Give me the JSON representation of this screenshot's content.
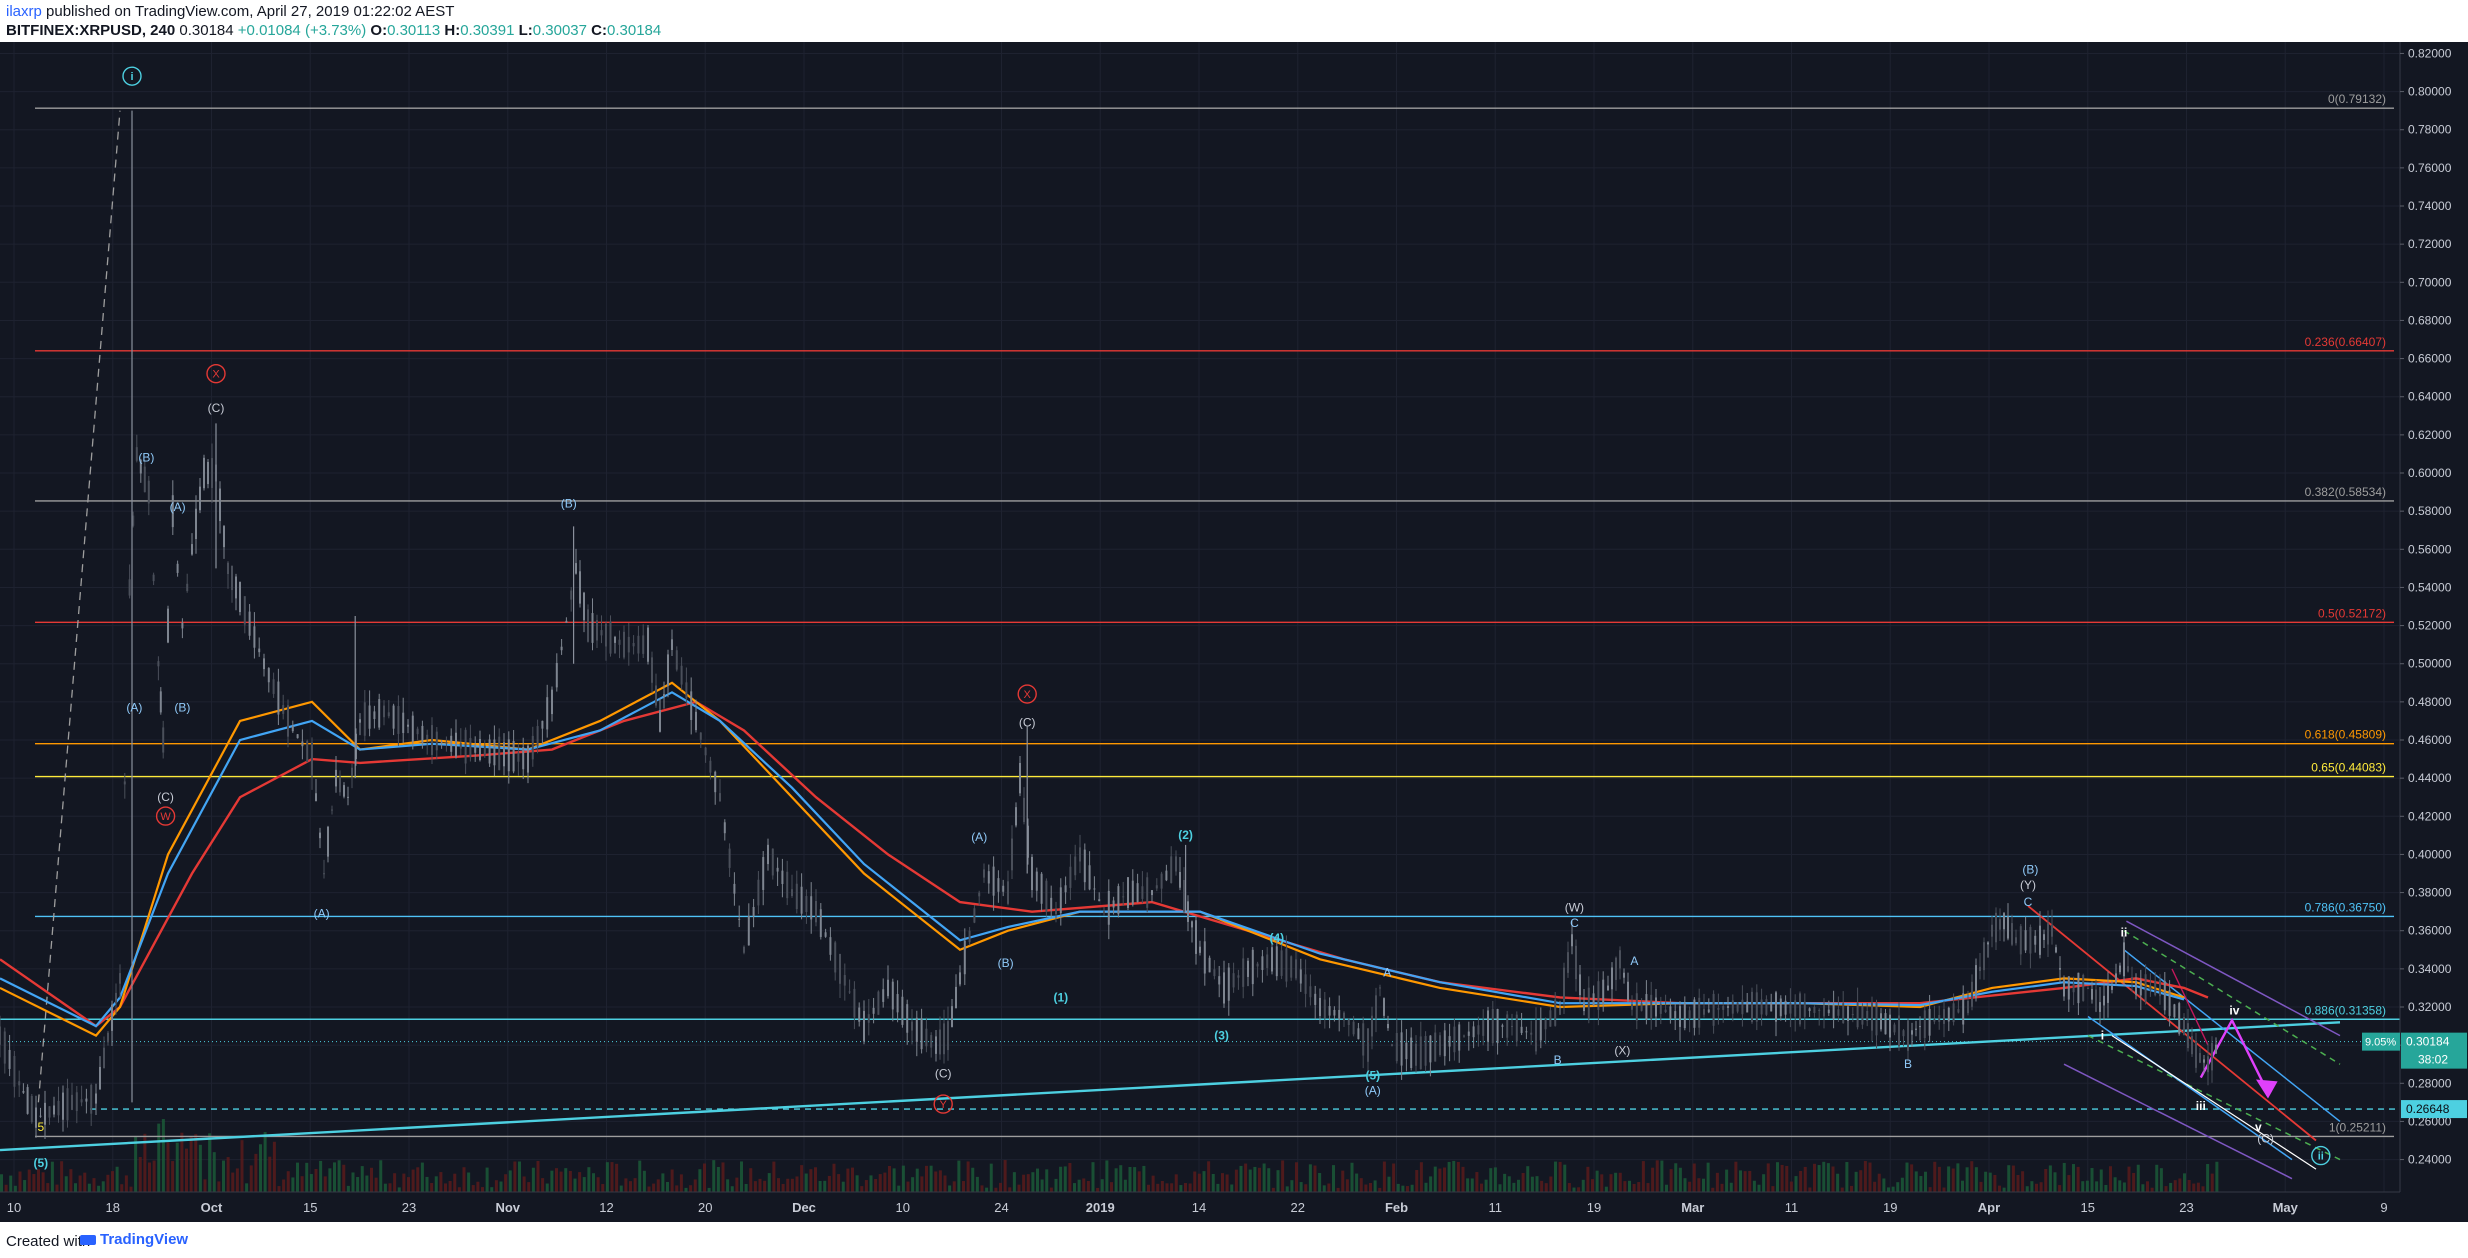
{
  "header": {
    "author": "ilaxrp",
    "published": "published on TradingView.com, April 27, 2019 01:22:02 AEST",
    "symbol": "BITFINEX:XRPUSD, 240",
    "last": "0.30184",
    "change": "+0.01084 (+3.73%)",
    "open_label": "O:",
    "open": "0.30113",
    "high_label": "H:",
    "high": "0.30391",
    "low_label": "L:",
    "low": "0.30037",
    "close_label": "C:",
    "close": "0.30184"
  },
  "footer": {
    "created_with": "Created with",
    "brand": "TradingView"
  },
  "colors": {
    "background": "#131722",
    "grid": "#1e2230",
    "axis_text": "#c8ccd6",
    "cyan": "#4dd0e1",
    "red": "#e53935",
    "orange": "#ff9800",
    "yellow": "#ffeb3b",
    "blue": "#42a5f5",
    "white": "#ffffff",
    "magenta": "#e040fb",
    "green": "#4caf50",
    "price_label_bg": "#26a69a"
  },
  "chart_data": {
    "type": "candlestick",
    "symbol": "BITFINEX:XRPUSD",
    "interval": "240",
    "ylim": [
      0.223,
      0.826
    ],
    "y_ticks": [
      "0.82000",
      "0.80000",
      "0.78000",
      "0.76000",
      "0.74000",
      "0.72000",
      "0.70000",
      "0.68000",
      "0.66000",
      "0.64000",
      "0.62000",
      "0.60000",
      "0.58000",
      "0.56000",
      "0.54000",
      "0.52000",
      "0.50000",
      "0.48000",
      "0.46000",
      "0.44000",
      "0.42000",
      "0.40000",
      "0.38000",
      "0.36000",
      "0.34000",
      "0.32000",
      "0.30000",
      "0.28000",
      "0.26000",
      "0.24000"
    ],
    "x_ticks": [
      "10",
      "18",
      "Oct",
      "15",
      "23",
      "Nov",
      "12",
      "20",
      "Dec",
      "10",
      "24",
      "2019",
      "14",
      "22",
      "Feb",
      "11",
      "19",
      "Mar",
      "11",
      "19",
      "Apr",
      "15",
      "23",
      "May",
      "9"
    ],
    "price_path": [
      [
        0,
        0.305
      ],
      [
        0.008,
        0.28
      ],
      [
        0.015,
        0.262
      ],
      [
        0.03,
        0.27
      ],
      [
        0.04,
        0.272
      ],
      [
        0.045,
        0.304
      ],
      [
        0.05,
        0.335
      ],
      [
        0.054,
        0.54
      ],
      [
        0.057,
        0.61
      ],
      [
        0.062,
        0.59
      ],
      [
        0.066,
        0.5
      ],
      [
        0.068,
        0.46
      ],
      [
        0.072,
        0.58
      ],
      [
        0.076,
        0.52
      ],
      [
        0.08,
        0.56
      ],
      [
        0.085,
        0.6
      ],
      [
        0.09,
        0.6
      ],
      [
        0.095,
        0.55
      ],
      [
        0.1,
        0.535
      ],
      [
        0.11,
        0.5
      ],
      [
        0.12,
        0.47
      ],
      [
        0.13,
        0.45
      ],
      [
        0.135,
        0.39
      ],
      [
        0.14,
        0.44
      ],
      [
        0.145,
        0.43
      ],
      [
        0.15,
        0.47
      ],
      [
        0.16,
        0.475
      ],
      [
        0.18,
        0.46
      ],
      [
        0.2,
        0.455
      ],
      [
        0.22,
        0.45
      ],
      [
        0.23,
        0.48
      ],
      [
        0.24,
        0.55
      ],
      [
        0.245,
        0.52
      ],
      [
        0.26,
        0.51
      ],
      [
        0.27,
        0.51
      ],
      [
        0.275,
        0.47
      ],
      [
        0.28,
        0.51
      ],
      [
        0.29,
        0.47
      ],
      [
        0.3,
        0.43
      ],
      [
        0.31,
        0.35
      ],
      [
        0.32,
        0.4
      ],
      [
        0.33,
        0.38
      ],
      [
        0.34,
        0.37
      ],
      [
        0.35,
        0.34
      ],
      [
        0.36,
        0.31
      ],
      [
        0.37,
        0.33
      ],
      [
        0.38,
        0.31
      ],
      [
        0.39,
        0.3
      ],
      [
        0.395,
        0.305
      ],
      [
        0.4,
        0.335
      ],
      [
        0.41,
        0.39
      ],
      [
        0.42,
        0.38
      ],
      [
        0.425,
        0.44
      ],
      [
        0.43,
        0.39
      ],
      [
        0.44,
        0.37
      ],
      [
        0.45,
        0.4
      ],
      [
        0.46,
        0.37
      ],
      [
        0.47,
        0.38
      ],
      [
        0.48,
        0.38
      ],
      [
        0.49,
        0.395
      ],
      [
        0.495,
        0.37
      ],
      [
        0.5,
        0.35
      ],
      [
        0.51,
        0.33
      ],
      [
        0.52,
        0.34
      ],
      [
        0.53,
        0.345
      ],
      [
        0.54,
        0.34
      ],
      [
        0.55,
        0.32
      ],
      [
        0.56,
        0.315
      ],
      [
        0.57,
        0.3
      ],
      [
        0.575,
        0.33
      ],
      [
        0.58,
        0.3
      ],
      [
        0.59,
        0.295
      ],
      [
        0.6,
        0.3
      ],
      [
        0.61,
        0.305
      ],
      [
        0.62,
        0.31
      ],
      [
        0.63,
        0.31
      ],
      [
        0.64,
        0.305
      ],
      [
        0.65,
        0.32
      ],
      [
        0.655,
        0.355
      ],
      [
        0.66,
        0.32
      ],
      [
        0.67,
        0.33
      ],
      [
        0.675,
        0.345
      ],
      [
        0.68,
        0.32
      ],
      [
        0.69,
        0.32
      ],
      [
        0.7,
        0.315
      ],
      [
        0.72,
        0.32
      ],
      [
        0.74,
        0.32
      ],
      [
        0.76,
        0.318
      ],
      [
        0.78,
        0.315
      ],
      [
        0.795,
        0.305
      ],
      [
        0.8,
        0.31
      ],
      [
        0.81,
        0.315
      ],
      [
        0.82,
        0.32
      ],
      [
        0.825,
        0.34
      ],
      [
        0.83,
        0.36
      ],
      [
        0.835,
        0.365
      ],
      [
        0.84,
        0.355
      ],
      [
        0.85,
        0.355
      ],
      [
        0.855,
        0.36
      ],
      [
        0.86,
        0.33
      ],
      [
        0.87,
        0.33
      ],
      [
        0.875,
        0.32
      ],
      [
        0.88,
        0.33
      ],
      [
        0.885,
        0.345
      ],
      [
        0.89,
        0.33
      ],
      [
        0.9,
        0.33
      ],
      [
        0.91,
        0.31
      ],
      [
        0.915,
        0.295
      ],
      [
        0.92,
        0.29
      ],
      [
        0.925,
        0.3018
      ]
    ],
    "ma_orange": [
      [
        0,
        0.33
      ],
      [
        0.04,
        0.305
      ],
      [
        0.05,
        0.32
      ],
      [
        0.07,
        0.4
      ],
      [
        0.1,
        0.47
      ],
      [
        0.13,
        0.48
      ],
      [
        0.15,
        0.455
      ],
      [
        0.18,
        0.46
      ],
      [
        0.22,
        0.455
      ],
      [
        0.25,
        0.47
      ],
      [
        0.28,
        0.49
      ],
      [
        0.3,
        0.47
      ],
      [
        0.33,
        0.43
      ],
      [
        0.36,
        0.39
      ],
      [
        0.4,
        0.35
      ],
      [
        0.42,
        0.36
      ],
      [
        0.45,
        0.37
      ],
      [
        0.5,
        0.37
      ],
      [
        0.55,
        0.345
      ],
      [
        0.6,
        0.33
      ],
      [
        0.65,
        0.32
      ],
      [
        0.7,
        0.322
      ],
      [
        0.75,
        0.322
      ],
      [
        0.8,
        0.32
      ],
      [
        0.83,
        0.33
      ],
      [
        0.86,
        0.335
      ],
      [
        0.89,
        0.333
      ],
      [
        0.91,
        0.325
      ]
    ],
    "ma_blue": [
      [
        0,
        0.335
      ],
      [
        0.04,
        0.31
      ],
      [
        0.05,
        0.325
      ],
      [
        0.07,
        0.39
      ],
      [
        0.1,
        0.46
      ],
      [
        0.13,
        0.47
      ],
      [
        0.15,
        0.455
      ],
      [
        0.18,
        0.458
      ],
      [
        0.22,
        0.455
      ],
      [
        0.25,
        0.465
      ],
      [
        0.28,
        0.485
      ],
      [
        0.3,
        0.47
      ],
      [
        0.33,
        0.435
      ],
      [
        0.36,
        0.395
      ],
      [
        0.4,
        0.355
      ],
      [
        0.42,
        0.362
      ],
      [
        0.45,
        0.37
      ],
      [
        0.5,
        0.37
      ],
      [
        0.55,
        0.348
      ],
      [
        0.6,
        0.333
      ],
      [
        0.65,
        0.322
      ],
      [
        0.7,
        0.322
      ],
      [
        0.75,
        0.322
      ],
      [
        0.8,
        0.321
      ],
      [
        0.83,
        0.328
      ],
      [
        0.86,
        0.333
      ],
      [
        0.89,
        0.331
      ],
      [
        0.91,
        0.324
      ]
    ],
    "ma_red": [
      [
        0,
        0.345
      ],
      [
        0.04,
        0.31
      ],
      [
        0.05,
        0.32
      ],
      [
        0.08,
        0.39
      ],
      [
        0.1,
        0.43
      ],
      [
        0.13,
        0.45
      ],
      [
        0.15,
        0.448
      ],
      [
        0.2,
        0.452
      ],
      [
        0.23,
        0.455
      ],
      [
        0.26,
        0.47
      ],
      [
        0.29,
        0.48
      ],
      [
        0.31,
        0.465
      ],
      [
        0.34,
        0.43
      ],
      [
        0.37,
        0.4
      ],
      [
        0.4,
        0.375
      ],
      [
        0.43,
        0.37
      ],
      [
        0.48,
        0.375
      ],
      [
        0.52,
        0.36
      ],
      [
        0.56,
        0.345
      ],
      [
        0.6,
        0.333
      ],
      [
        0.65,
        0.325
      ],
      [
        0.7,
        0.322
      ],
      [
        0.75,
        0.322
      ],
      [
        0.8,
        0.322
      ],
      [
        0.83,
        0.326
      ],
      [
        0.86,
        0.33
      ],
      [
        0.89,
        0.335
      ],
      [
        0.91,
        0.33
      ],
      [
        0.92,
        0.325
      ]
    ],
    "fib_levels": [
      {
        "label": "0(0.79132)",
        "value": 0.79132,
        "color": "#9e9e9e"
      },
      {
        "label": "0.236(0.66407)",
        "value": 0.66407,
        "color": "#e53935"
      },
      {
        "label": "0.382(0.58534)",
        "value": 0.58534,
        "color": "#9e9e9e"
      },
      {
        "label": "0.5(0.52172)",
        "value": 0.52172,
        "color": "#e53935"
      },
      {
        "label": "0.618(0.45809)",
        "value": 0.45809,
        "color": "#ff9800"
      },
      {
        "label": "0.65(0.44083)",
        "value": 0.44083,
        "color": "#ffeb3b"
      },
      {
        "label": "0.786(0.36750)",
        "value": 0.3675,
        "color": "#4fc3f7"
      },
      {
        "label": "0.886(0.31358)",
        "value": 0.31358,
        "color": "#4dd0e1"
      },
      {
        "label": "1(0.25211)",
        "value": 0.25211,
        "color": "#9e9e9e"
      }
    ],
    "dashed_level": {
      "label": "0.26648",
      "value": 0.26648
    },
    "last_price": {
      "label": "0.30184",
      "value": 0.30184,
      "pct": "9.05%",
      "countdown": "38:02"
    },
    "trendline": [
      [
        0,
        0.245
      ],
      [
        0.975,
        0.312
      ]
    ],
    "wave_labels": [
      {
        "text": "i",
        "x": 0.055,
        "y": 0.806,
        "color": "#4dd0e1",
        "circle": true
      },
      {
        "text": "X",
        "x": 0.09,
        "y": 0.65,
        "color": "#e53935",
        "circle": true
      },
      {
        "text": "(C)",
        "x": 0.09,
        "y": 0.632,
        "color": "#c8ccd6"
      },
      {
        "text": "(B)",
        "x": 0.061,
        "y": 0.606,
        "color": "#90caf9"
      },
      {
        "text": "(A)",
        "x": 0.074,
        "y": 0.58,
        "color": "#90caf9"
      },
      {
        "text": "(A)",
        "x": 0.056,
        "y": 0.475,
        "color": "#90caf9"
      },
      {
        "text": "(B)",
        "x": 0.076,
        "y": 0.475,
        "color": "#90caf9"
      },
      {
        "text": "(C)",
        "x": 0.069,
        "y": 0.428,
        "color": "#c8ccd6"
      },
      {
        "text": "W",
        "x": 0.069,
        "y": 0.418,
        "color": "#e53935",
        "circle": true
      },
      {
        "text": "(A)",
        "x": 0.134,
        "y": 0.367,
        "color": "#90caf9"
      },
      {
        "text": "(B)",
        "x": 0.237,
        "y": 0.582,
        "color": "#90caf9"
      },
      {
        "text": "X",
        "x": 0.428,
        "y": 0.482,
        "color": "#e53935",
        "circle": true
      },
      {
        "text": "(C)",
        "x": 0.428,
        "y": 0.467,
        "color": "#c8ccd6"
      },
      {
        "text": "(A)",
        "x": 0.408,
        "y": 0.407,
        "color": "#90caf9"
      },
      {
        "text": "(B)",
        "x": 0.419,
        "y": 0.341,
        "color": "#90caf9"
      },
      {
        "text": "(2)",
        "x": 0.494,
        "y": 0.408,
        "color": "#4dd0e1"
      },
      {
        "text": "(1)",
        "x": 0.442,
        "y": 0.323,
        "color": "#4dd0e1"
      },
      {
        "text": "(4)",
        "x": 0.532,
        "y": 0.354,
        "color": "#4dd0e1"
      },
      {
        "text": "(3)",
        "x": 0.509,
        "y": 0.303,
        "color": "#4dd0e1"
      },
      {
        "text": "(C)",
        "x": 0.393,
        "y": 0.283,
        "color": "#c8ccd6"
      },
      {
        "text": "Y",
        "x": 0.393,
        "y": 0.267,
        "color": "#e53935",
        "circle": true
      },
      {
        "text": "A",
        "x": 0.578,
        "y": 0.336,
        "color": "#90caf9"
      },
      {
        "text": "(5)",
        "x": 0.572,
        "y": 0.282,
        "color": "#4dd0e1"
      },
      {
        "text": "(A)",
        "x": 0.572,
        "y": 0.274,
        "color": "#90caf9"
      },
      {
        "text": "(W)",
        "x": 0.656,
        "y": 0.37,
        "color": "#c8ccd6"
      },
      {
        "text": "C",
        "x": 0.656,
        "y": 0.362,
        "color": "#90caf9"
      },
      {
        "text": "A",
        "x": 0.681,
        "y": 0.342,
        "color": "#90caf9"
      },
      {
        "text": "B",
        "x": 0.649,
        "y": 0.29,
        "color": "#90caf9"
      },
      {
        "text": "(X)",
        "x": 0.676,
        "y": 0.295,
        "color": "#c8ccd6"
      },
      {
        "text": "B",
        "x": 0.795,
        "y": 0.288,
        "color": "#90caf9"
      },
      {
        "text": "(B)",
        "x": 0.846,
        "y": 0.39,
        "color": "#90caf9"
      },
      {
        "text": "(Y)",
        "x": 0.845,
        "y": 0.382,
        "color": "#c8ccd6"
      },
      {
        "text": "C",
        "x": 0.845,
        "y": 0.373,
        "color": "#90caf9"
      },
      {
        "text": "ii",
        "x": 0.885,
        "y": 0.357,
        "color": "#ffffff"
      },
      {
        "text": "i",
        "x": 0.876,
        "y": 0.303,
        "color": "#ffffff"
      },
      {
        "text": "iv",
        "x": 0.931,
        "y": 0.316,
        "color": "#ffffff"
      },
      {
        "text": "iii",
        "x": 0.917,
        "y": 0.266,
        "color": "#ffffff"
      },
      {
        "text": "v",
        "x": 0.941,
        "y": 0.255,
        "color": "#ffffff"
      },
      {
        "text": "(C)",
        "x": 0.944,
        "y": 0.249,
        "color": "#c8ccd6"
      },
      {
        "text": "ii",
        "x": 0.967,
        "y": 0.24,
        "color": "#4dd0e1",
        "circle": true
      },
      {
        "text": "5",
        "x": 0.017,
        "y": 0.255,
        "color": "#ffeb3b"
      },
      {
        "text": "(5)",
        "x": 0.017,
        "y": 0.236,
        "color": "#4dd0e1"
      }
    ]
  }
}
